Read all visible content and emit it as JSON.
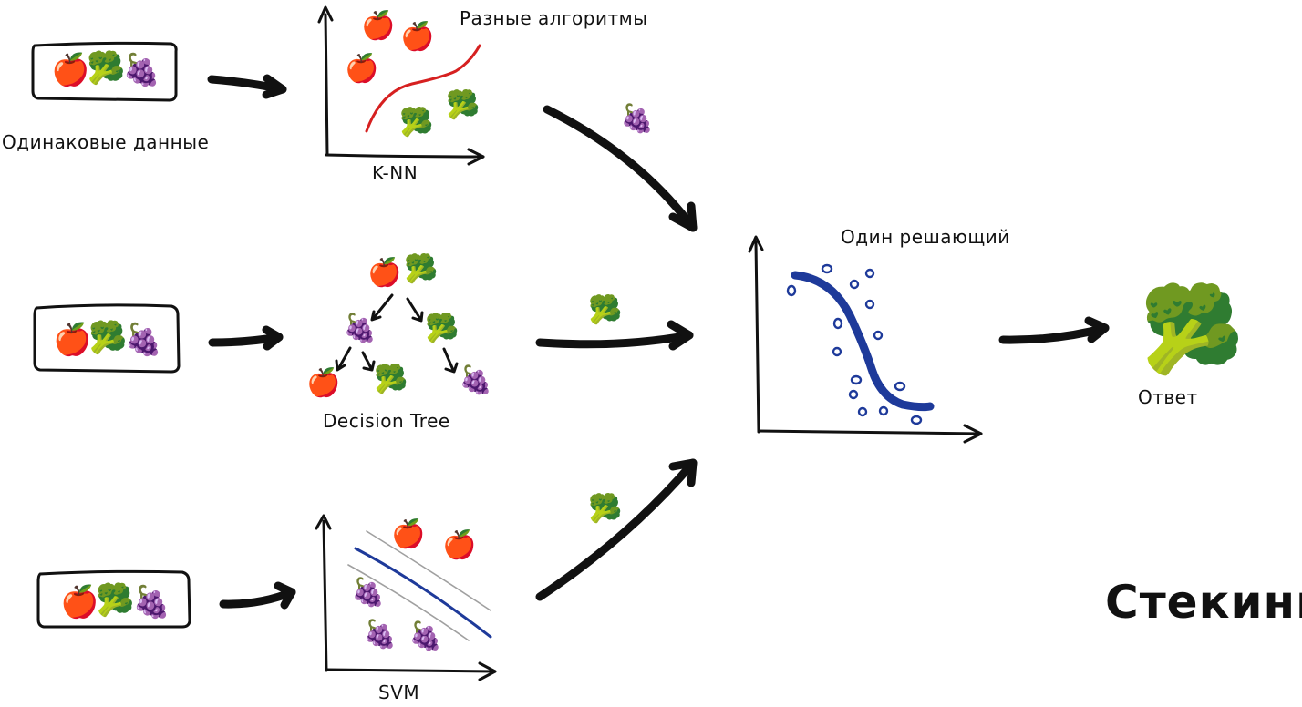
{
  "labels": {
    "same_data": "Одинаковые данные",
    "different_algorithms": "Разные алгоритмы",
    "knn": "K-NN",
    "decision_tree": "Decision Tree",
    "svm": "SVM",
    "meta_model": "Один решающий",
    "answer": "Ответ",
    "title": "Стекинг"
  },
  "icons": {
    "apple": "🍎",
    "broccoli": "🥦",
    "grapes": "🍇"
  },
  "colors": {
    "ink": "#111111",
    "knn_boundary": "#d62020",
    "meta_curve": "#1e3a9a",
    "svm_line": "#1e3a9a",
    "svm_margin": "#a0a0a0",
    "point_outline": "#1e3a9a"
  },
  "predictions": {
    "knn": "grapes",
    "decision_tree": "broccoli",
    "svm": "broccoli",
    "final": "broccoli"
  }
}
